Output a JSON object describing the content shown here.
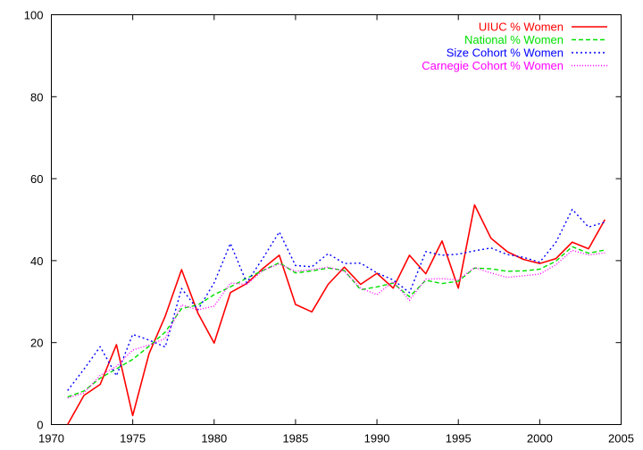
{
  "chart_data": {
    "type": "line",
    "xlim": [
      1970,
      2005
    ],
    "ylim": [
      0,
      100
    ],
    "x_ticks": [
      "1970",
      "1975",
      "1980",
      "1985",
      "1990",
      "1995",
      "2000",
      "2005"
    ],
    "y_ticks": [
      "0",
      "20",
      "40",
      "60",
      "80",
      "100"
    ],
    "grid": false,
    "legend_position": "top-right",
    "x": [
      1971,
      1972,
      1973,
      1974,
      1975,
      1976,
      1977,
      1978,
      1979,
      1980,
      1981,
      1982,
      1983,
      1984,
      1985,
      1986,
      1987,
      1988,
      1989,
      1990,
      1991,
      1992,
      1993,
      1994,
      1995,
      1996,
      1997,
      1998,
      1999,
      2000,
      2001,
      2002,
      2003,
      2004
    ],
    "series": [
      {
        "name": "UIUC % Women",
        "color": "#ff0000",
        "dash": "solid",
        "values": [
          0,
          7.1,
          9.8,
          19.5,
          2.2,
          17.3,
          26.5,
          37.8,
          27.2,
          19.9,
          32.2,
          34.4,
          38.1,
          41.3,
          29.3,
          27.5,
          34.2,
          38.4,
          34.2,
          36.9,
          33.3,
          41.3,
          36.8,
          44.8,
          33.3,
          53.6,
          45.5,
          42.2,
          40.3,
          39.3,
          40.5,
          44.5,
          42.9,
          50.0
        ]
      },
      {
        "name": "National % Women",
        "color": "#00e000",
        "dash": "dashed",
        "values": [
          6.7,
          8.2,
          11.3,
          13.6,
          15.9,
          19.1,
          22.6,
          28.3,
          29.2,
          31.7,
          33.6,
          35.7,
          37.6,
          39.5,
          37.0,
          37.5,
          38.2,
          37.6,
          32.9,
          33.6,
          34.5,
          31.2,
          35.2,
          34.4,
          35.0,
          38.2,
          38.0,
          37.4,
          37.5,
          37.9,
          39.9,
          43.4,
          41.8,
          42.6
        ]
      },
      {
        "name": "Size Cohort % Women",
        "color": "#0000ff",
        "dash": "dotted",
        "values": [
          8.3,
          13.5,
          19.0,
          11.9,
          22.0,
          20.6,
          18.9,
          33.2,
          28.0,
          34.6,
          44.2,
          34.6,
          40.6,
          47.0,
          38.8,
          38.5,
          41.7,
          39.3,
          39.4,
          37.0,
          35.3,
          32.2,
          42.2,
          41.3,
          41.6,
          42.4,
          43.1,
          41.5,
          40.8,
          39.6,
          44.5,
          52.5,
          48.2,
          49.4
        ]
      },
      {
        "name": "Carnegie Cohort % Women",
        "color": "#ff00ff",
        "dash": "dotted-fine",
        "values": [
          6.5,
          7.7,
          12.0,
          14.2,
          18.2,
          19.4,
          21.0,
          29.2,
          28.0,
          28.9,
          34.5,
          34.2,
          37.6,
          39.2,
          37.4,
          37.8,
          38.4,
          37.4,
          33.3,
          31.7,
          34.9,
          30.3,
          35.5,
          35.6,
          35.3,
          38.3,
          37.0,
          35.9,
          36.3,
          36.7,
          39.0,
          42.5,
          41.4,
          41.9
        ]
      }
    ]
  }
}
